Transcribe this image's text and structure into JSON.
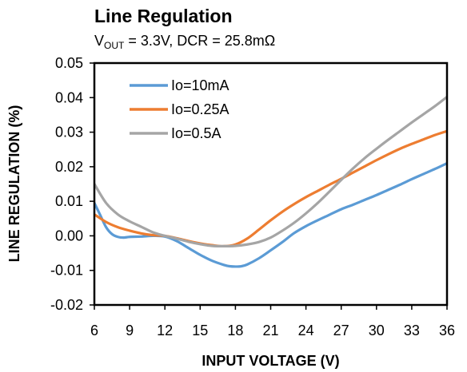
{
  "chart_data": {
    "type": "line",
    "title": "Line Regulation",
    "subtitle": {
      "prefix": "V",
      "subscript": "OUT",
      "suffix": " = 3.3V, DCR = 25.8mΩ"
    },
    "xlabel": "INPUT VOLTAGE (V)",
    "ylabel": "LINE REGULATION (%)",
    "xlim": [
      6,
      36
    ],
    "ylim": [
      -0.02,
      0.05
    ],
    "x_ticks": [
      6,
      9,
      12,
      15,
      18,
      21,
      24,
      27,
      30,
      33,
      36
    ],
    "x_tick_labels": [
      "6",
      "9",
      "12",
      "15",
      "18",
      "21",
      "24",
      "27",
      "30",
      "33",
      "36"
    ],
    "y_ticks": [
      -0.02,
      -0.01,
      0,
      0.01,
      0.02,
      0.03,
      0.04,
      0.05
    ],
    "y_tick_labels": [
      "-0.02",
      "-0.01",
      "0.00",
      "0.01",
      "0.02",
      "0.03",
      "0.04",
      "0.05"
    ],
    "grid": false,
    "legend_position": "top-left",
    "series": [
      {
        "name": "Io=10mA",
        "color": "#5B9BD5",
        "x": [
          6,
          6.5,
          7,
          7.5,
          8,
          8.5,
          9,
          10,
          11,
          12,
          13,
          14,
          15,
          16,
          17,
          17.5,
          18,
          18.5,
          19,
          20,
          21,
          22,
          23,
          24,
          25,
          26,
          27,
          28,
          29,
          30,
          31,
          32,
          33,
          34,
          35,
          36
        ],
        "y": [
          0.0095,
          0.006,
          0.0025,
          0.0005,
          -0.0003,
          -0.0005,
          -0.0003,
          -0.0002,
          0.0,
          -0.0002,
          -0.0015,
          -0.0035,
          -0.0055,
          -0.0072,
          -0.0084,
          -0.0088,
          -0.0089,
          -0.0088,
          -0.0083,
          -0.0065,
          -0.0042,
          -0.0018,
          0.0008,
          0.0028,
          0.0045,
          0.0061,
          0.0077,
          0.009,
          0.0104,
          0.0118,
          0.0133,
          0.0148,
          0.0164,
          0.0179,
          0.0194,
          0.021
        ]
      },
      {
        "name": "Io=0.25A",
        "color": "#ED7D31",
        "x": [
          6,
          7,
          8,
          9,
          10,
          11,
          12,
          13,
          14,
          15,
          16,
          17,
          18,
          19,
          20,
          21,
          22,
          23,
          24,
          25,
          26,
          27,
          28,
          29,
          30,
          31,
          32,
          33,
          34,
          35,
          36
        ],
        "y": [
          0.0062,
          0.004,
          0.0025,
          0.0015,
          0.0007,
          0.0002,
          0.0,
          -0.0007,
          -0.0015,
          -0.0022,
          -0.0027,
          -0.003,
          -0.0025,
          -0.0008,
          0.0018,
          0.0045,
          0.007,
          0.0092,
          0.0112,
          0.013,
          0.0148,
          0.0165,
          0.0183,
          0.0201,
          0.0219,
          0.0236,
          0.0252,
          0.0266,
          0.0279,
          0.0292,
          0.0303
        ]
      },
      {
        "name": "Io=0.5A",
        "color": "#A5A5A5",
        "x": [
          6,
          7,
          8,
          9,
          10,
          11,
          12,
          13,
          14,
          15,
          16,
          17,
          18,
          19,
          20,
          21,
          22,
          23,
          24,
          25,
          26,
          27,
          28,
          29,
          30,
          31,
          32,
          33,
          34,
          35,
          36
        ],
        "y": [
          0.015,
          0.0095,
          0.0062,
          0.0042,
          0.0026,
          0.001,
          0.0,
          -0.0008,
          -0.0017,
          -0.0024,
          -0.0029,
          -0.003,
          -0.0029,
          -0.0025,
          -0.0018,
          -0.0005,
          0.0015,
          0.0038,
          0.0065,
          0.0095,
          0.0128,
          0.0162,
          0.0195,
          0.0225,
          0.0252,
          0.0278,
          0.0303,
          0.0328,
          0.0352,
          0.0376,
          0.0402
        ]
      }
    ]
  }
}
